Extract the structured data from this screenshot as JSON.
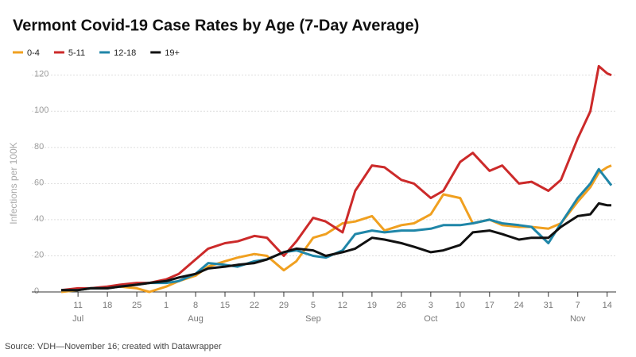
{
  "chart_data": {
    "type": "line",
    "title": "Vermont Covid-19 Case Rates by Age (7-Day Average)",
    "ylabel": "Infections per 100K",
    "source": "Source: VDH—November 16; created with Datawrapper",
    "x": [
      "Jul 7",
      "Jul 11",
      "Jul 14",
      "Jul 18",
      "Jul 21",
      "Jul 25",
      "Jul 28",
      "Aug 1",
      "Aug 4",
      "Aug 8",
      "Aug 11",
      "Aug 15",
      "Aug 18",
      "Aug 22",
      "Aug 25",
      "Aug 29",
      "Sep 1",
      "Sep 5",
      "Sep 8",
      "Sep 12",
      "Sep 15",
      "Sep 19",
      "Sep 22",
      "Sep 26",
      "Sep 29",
      "Oct 3",
      "Oct 6",
      "Oct 10",
      "Oct 13",
      "Oct 17",
      "Oct 20",
      "Oct 24",
      "Oct 27",
      "Oct 31",
      "Nov 3",
      "Nov 7",
      "Nov 10",
      "Nov 12",
      "Nov 14",
      "Nov 15"
    ],
    "xlim": [
      "Jul 7",
      "Nov 15"
    ],
    "xticks": [
      {
        "value": "Jul 11",
        "label": "11"
      },
      {
        "value": "Jul 18",
        "label": "18"
      },
      {
        "value": "Jul 25",
        "label": "25"
      },
      {
        "value": "Aug 1",
        "label": "1"
      },
      {
        "value": "Aug 8",
        "label": "8"
      },
      {
        "value": "Aug 15",
        "label": "15"
      },
      {
        "value": "Aug 22",
        "label": "22"
      },
      {
        "value": "Aug 29",
        "label": "29"
      },
      {
        "value": "Sep 5",
        "label": "5"
      },
      {
        "value": "Sep 12",
        "label": "12"
      },
      {
        "value": "Sep 19",
        "label": "19"
      },
      {
        "value": "Sep 26",
        "label": "26"
      },
      {
        "value": "Oct 3",
        "label": "3"
      },
      {
        "value": "Oct 10",
        "label": "10"
      },
      {
        "value": "Oct 17",
        "label": "17"
      },
      {
        "value": "Oct 24",
        "label": "24"
      },
      {
        "value": "Oct 31",
        "label": "31"
      },
      {
        "value": "Nov 7",
        "label": "7"
      },
      {
        "value": "Nov 14",
        "label": "14"
      }
    ],
    "month_labels": [
      {
        "value": "Jul 11",
        "label": "Jul"
      },
      {
        "value": "Aug 8",
        "label": "Aug"
      },
      {
        "value": "Sep 5",
        "label": "Sep"
      },
      {
        "value": "Oct 3",
        "label": "Oct"
      },
      {
        "value": "Nov 7",
        "label": "Nov"
      }
    ],
    "ylim": [
      0,
      130
    ],
    "yticks": [
      0,
      20,
      40,
      60,
      80,
      100,
      120
    ],
    "grid": true,
    "series": [
      {
        "name": "0-4",
        "color": "#f0a020",
        "values": [
          0,
          1,
          2,
          2,
          3,
          2,
          0,
          3,
          6,
          9,
          14,
          17,
          19,
          21,
          20,
          12,
          17,
          30,
          32,
          38,
          39,
          42,
          34,
          37,
          38,
          43,
          54,
          52,
          38,
          40,
          37,
          36,
          36,
          35,
          38,
          50,
          58,
          66,
          69,
          70
        ]
      },
      {
        "name": "5-11",
        "color": "#cc2a2a",
        "values": [
          1,
          2,
          2,
          3,
          4,
          5,
          5,
          7,
          10,
          18,
          24,
          27,
          28,
          31,
          30,
          20,
          28,
          41,
          39,
          33,
          56,
          70,
          69,
          62,
          60,
          52,
          56,
          72,
          77,
          67,
          70,
          60,
          61,
          56,
          62,
          85,
          100,
          125,
          121,
          120
        ]
      },
      {
        "name": "12-18",
        "color": "#1f86a8",
        "values": [
          1,
          1,
          2,
          2,
          3,
          4,
          5,
          5,
          6,
          10,
          16,
          15,
          14,
          17,
          18,
          22,
          23,
          20,
          19,
          23,
          32,
          34,
          33,
          34,
          34,
          35,
          37,
          37,
          38,
          40,
          38,
          37,
          36,
          27,
          38,
          52,
          60,
          68,
          62,
          59
        ]
      },
      {
        "name": "19+",
        "color": "#111111",
        "values": [
          1,
          1,
          2,
          2,
          3,
          4,
          5,
          6,
          8,
          10,
          13,
          14,
          15,
          16,
          18,
          22,
          24,
          23,
          20,
          22,
          24,
          30,
          29,
          27,
          25,
          22,
          23,
          26,
          33,
          34,
          32,
          29,
          30,
          30,
          36,
          42,
          43,
          49,
          48,
          48
        ]
      }
    ]
  }
}
